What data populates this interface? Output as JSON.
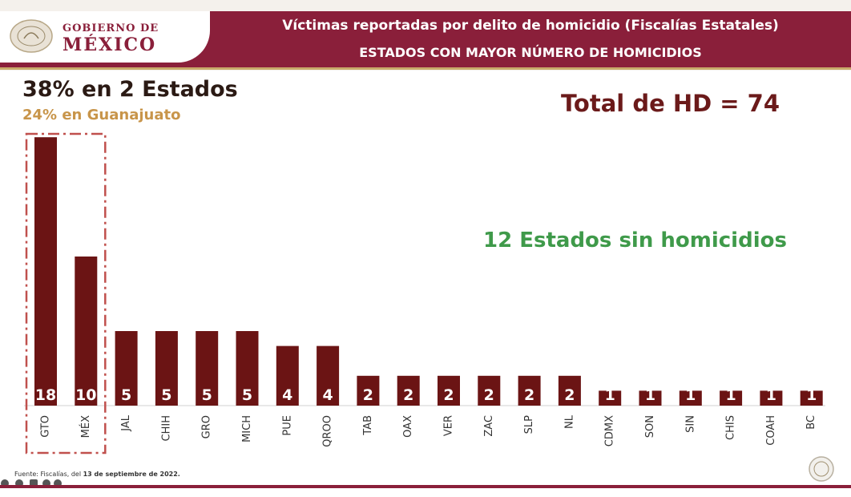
{
  "header": {
    "gov_line1": "GOBIERNO DE",
    "gov_line2": "MÉXICO",
    "title": "Víctimas reportadas por delito de homicidio (Fiscalías Estatales)",
    "subtitle": "ESTADOS CON MAYOR NÚMERO DE HOMICIDIOS"
  },
  "annotations": {
    "headline": "38% en 2 Estados",
    "subheadline": "24% en Guanajuato",
    "total": "Total de HD = 74",
    "no_homicides": "12 Estados sin homicidios"
  },
  "source_prefix": "Fuente: Fiscalías, del ",
  "source_date": "13 de septiembre de 2022.",
  "colors": {
    "bar": "#6b1414",
    "brand": "#8a1f3a",
    "gold": "#c9a96a",
    "highlight_box": "#c0504d",
    "green": "#3f9a4a"
  },
  "chart_data": {
    "type": "bar",
    "categories": [
      "GTO",
      "MÉX",
      "JAL",
      "CHIH",
      "GRO",
      "MICH",
      "PUE",
      "QROO",
      "TAB",
      "OAX",
      "VER",
      "ZAC",
      "SLP",
      "NL",
      "CDMX",
      "SON",
      "SIN",
      "CHIS",
      "COAH",
      "BC"
    ],
    "values": [
      18,
      10,
      5,
      5,
      5,
      5,
      4,
      4,
      2,
      2,
      2,
      2,
      2,
      2,
      1,
      1,
      1,
      1,
      1,
      1
    ],
    "highlighted_categories": [
      "GTO",
      "MÉX"
    ],
    "grid": false,
    "legend": "none"
  }
}
